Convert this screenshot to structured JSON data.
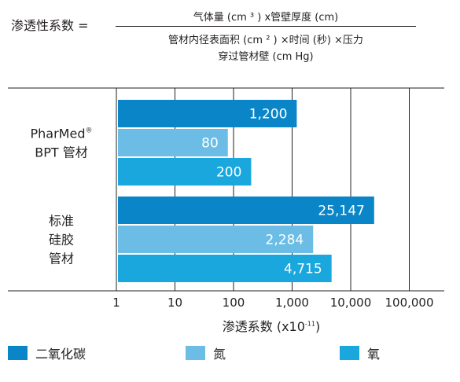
{
  "formula": {
    "label": "渗透性系数 =",
    "numerator": "气体量 (cm ³ ) x管壁厚度 (cm)",
    "denominator_line1": "管材内径表面积 (cm ² ) ×时间 (秒) ×压力",
    "denominator_line2": "穿过管材壁 (cm Hg)"
  },
  "chart_data": {
    "type": "bar",
    "orientation": "horizontal",
    "x_scale": "log",
    "xlim": [
      1,
      100000
    ],
    "x_ticks": [
      "1",
      "10",
      "100",
      "1,000",
      "10,000",
      "100,000"
    ],
    "x_tick_values": [
      1,
      10,
      100,
      1000,
      10000,
      100000
    ],
    "xlabel": "渗透系数 (x10",
    "xlabel_sup": "-11",
    "xlabel_end": ")",
    "grid": true,
    "categories": [
      {
        "lines": [
          "PharMed",
          "BPT 管材"
        ],
        "sup": "®"
      },
      {
        "lines": [
          "标准",
          "硅胶",
          "管材"
        ],
        "sup": ""
      }
    ],
    "series": [
      {
        "name": "二氧化碳",
        "color": "#0a86c8",
        "values": [
          1200,
          25147
        ],
        "labels": [
          "1,200",
          "25,147"
        ]
      },
      {
        "name": "氮",
        "color": "#6bbde6",
        "values": [
          80,
          2284
        ],
        "labels": [
          "80",
          "2,284"
        ]
      },
      {
        "name": "氧",
        "color": "#1aa7dd",
        "values": [
          200,
          4715
        ],
        "labels": [
          "200",
          "4,715"
        ]
      }
    ],
    "legend_position": "bottom"
  }
}
